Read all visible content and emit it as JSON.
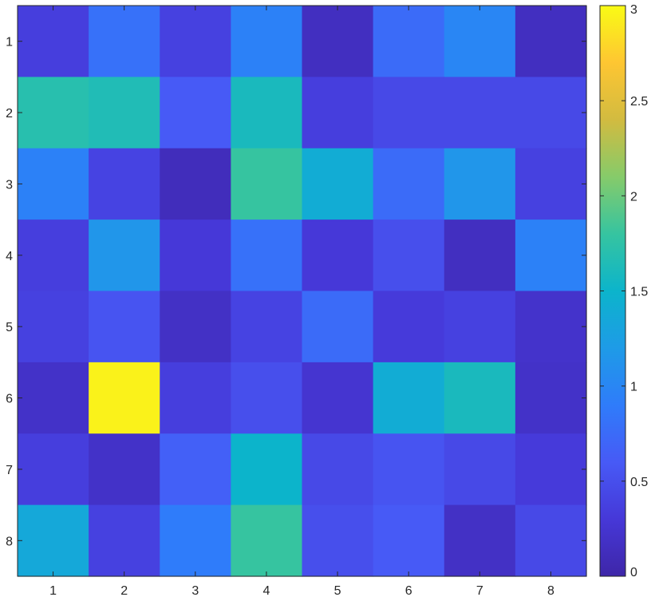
{
  "chart_data": {
    "type": "heatmap",
    "title": "",
    "xlabel": "",
    "ylabel": "",
    "x_categories": [
      "1",
      "2",
      "3",
      "4",
      "5",
      "6",
      "7",
      "8"
    ],
    "y_categories": [
      "1",
      "2",
      "3",
      "4",
      "5",
      "6",
      "7",
      "8"
    ],
    "values": [
      [
        0.35,
        0.8,
        0.38,
        0.95,
        0.15,
        0.75,
        1.0,
        0.15
      ],
      [
        1.7,
        1.65,
        0.6,
        1.6,
        0.35,
        0.45,
        0.45,
        0.45
      ],
      [
        0.95,
        0.4,
        0.12,
        1.8,
        1.4,
        0.75,
        1.15,
        0.38
      ],
      [
        0.35,
        1.15,
        0.3,
        0.8,
        0.3,
        0.5,
        0.15,
        0.95
      ],
      [
        0.38,
        0.55,
        0.18,
        0.4,
        0.75,
        0.32,
        0.38,
        0.22
      ],
      [
        0.2,
        2.95,
        0.35,
        0.5,
        0.25,
        1.4,
        1.6,
        0.2
      ],
      [
        0.35,
        0.2,
        0.65,
        1.5,
        0.45,
        0.55,
        0.45,
        0.32
      ],
      [
        1.35,
        0.38,
        0.9,
        1.8,
        0.5,
        0.6,
        0.18,
        0.45
      ]
    ],
    "colorbar": {
      "range": [
        0,
        3
      ],
      "ticks": [
        "0",
        "0.5",
        "1",
        "1.5",
        "2",
        "2.5",
        "3"
      ],
      "colormap": "parula"
    },
    "grid": false,
    "legend": "colorbar-right"
  }
}
